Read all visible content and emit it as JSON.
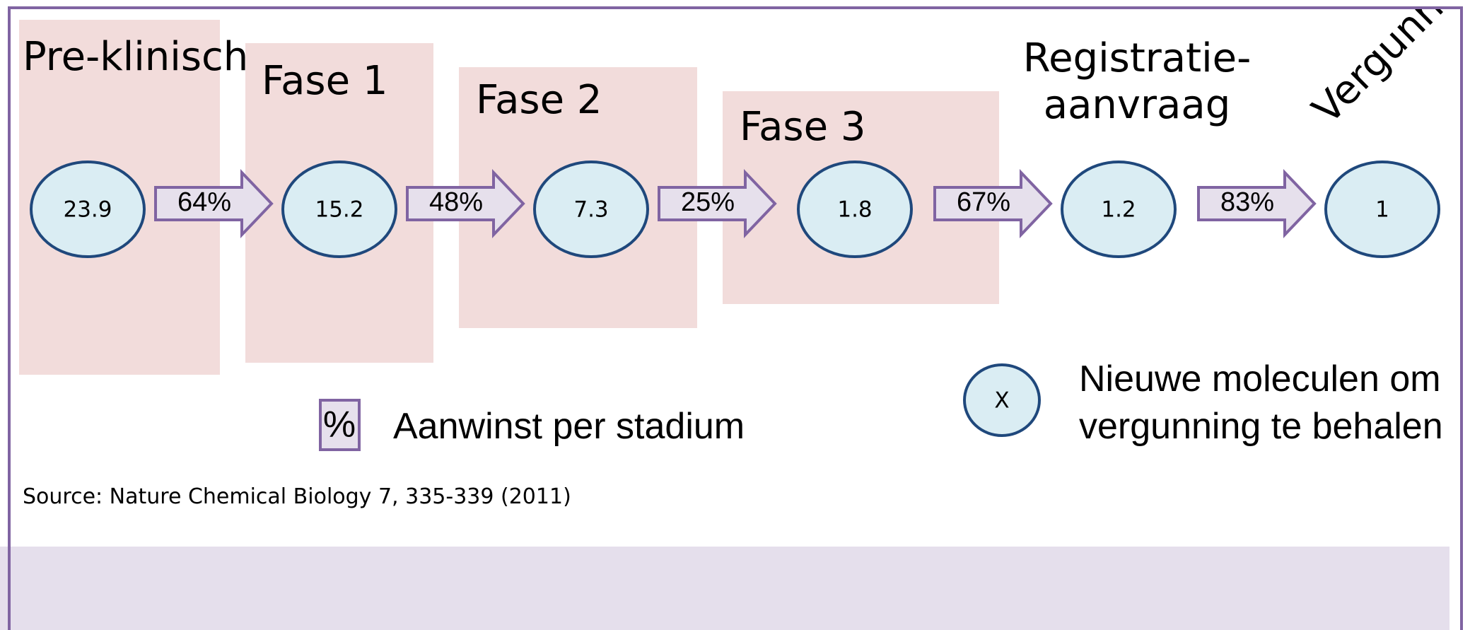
{
  "stages": [
    {
      "label": "Pre-klinisch",
      "value": "23.9"
    },
    {
      "label": "Fase 1",
      "value": "15.2"
    },
    {
      "label": "Fase 2",
      "value": "7.3"
    },
    {
      "label": "Fase 3",
      "value": "1.8"
    },
    {
      "label_lines": [
        "Registratie-",
        "aanvraag"
      ],
      "value": "1.2"
    },
    {
      "label": "Vergunning",
      "value": "1"
    }
  ],
  "transitions": [
    "64%",
    "48%",
    "25%",
    "67%",
    "83%"
  ],
  "legend": {
    "percent_symbol": "%",
    "percent_text": "Aanwinst per stadium",
    "molecule_symbol": "X",
    "molecule_lines": [
      "Nieuwe moleculen om",
      "vergunning te behalen"
    ]
  },
  "source": "Source: Nature Chemical Biology 7, 335-339 (2011)"
}
